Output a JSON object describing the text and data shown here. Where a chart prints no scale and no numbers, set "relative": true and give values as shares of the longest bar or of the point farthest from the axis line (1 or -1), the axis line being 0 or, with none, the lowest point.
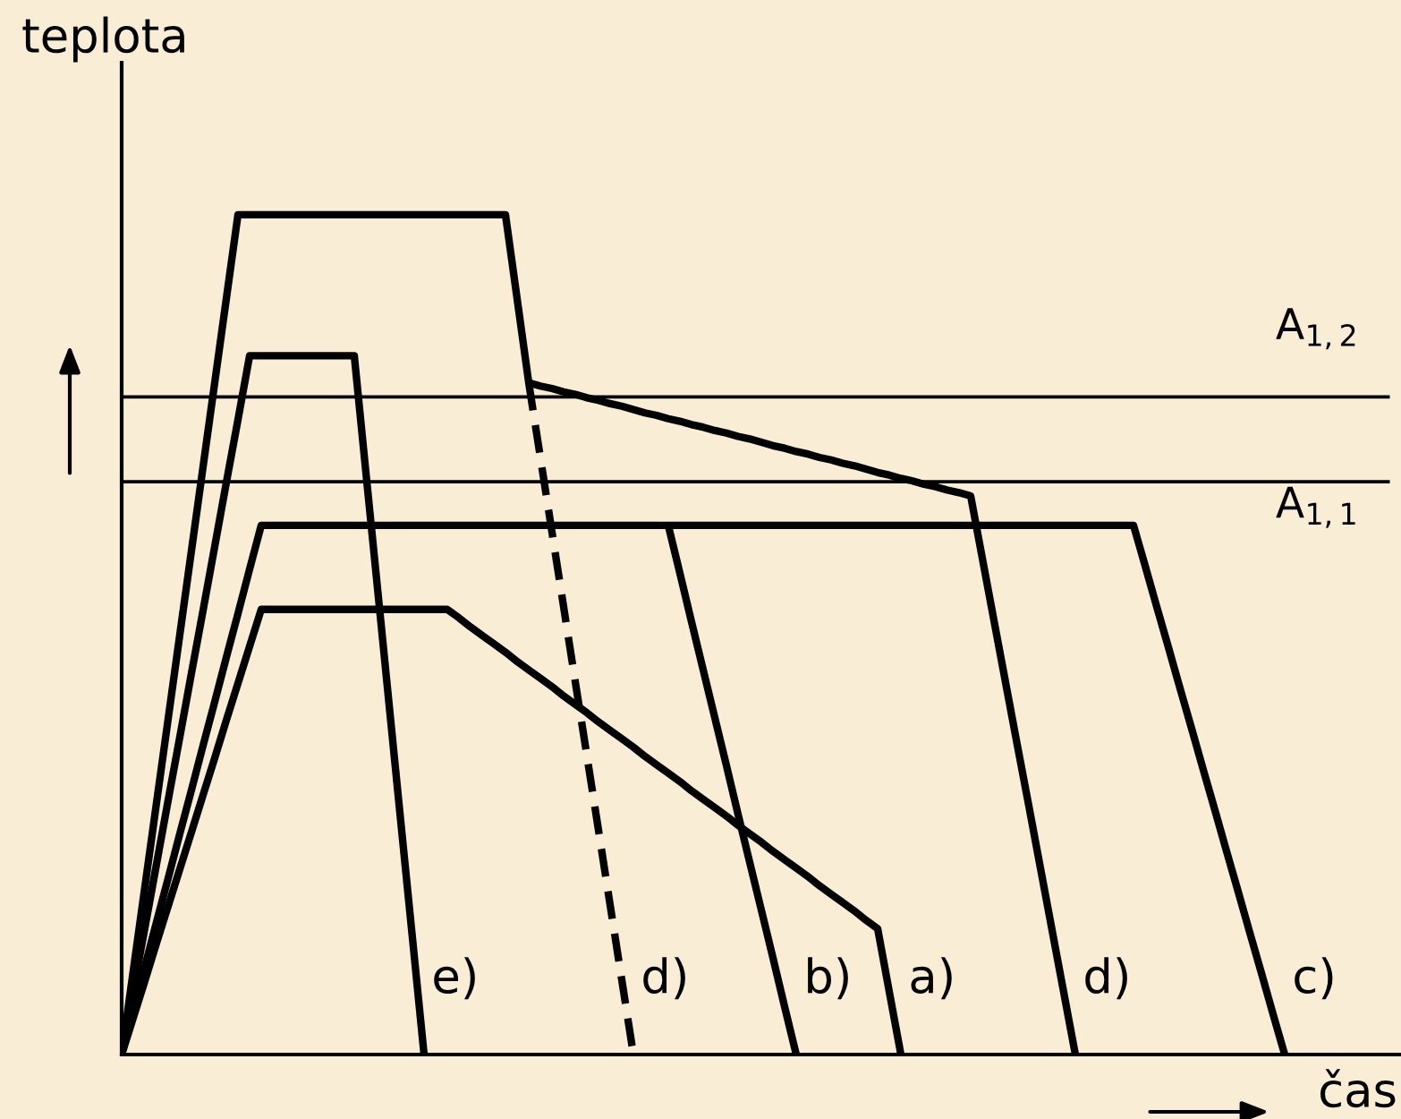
{
  "chart_data": {
    "type": "line",
    "relative": true,
    "xlabel": "čas",
    "ylabel": "teplota",
    "legend": false,
    "categories": [
      null,
      null,
      null,
      null,
      null,
      null,
      null,
      null,
      null,
      null,
      null,
      null,
      null,
      null,
      null,
      null,
      null,
      null,
      null,
      null,
      null,
      null,
      null,
      null,
      null,
      null,
      null,
      null,
      null,
      null,
      null,
      null,
      null,
      null,
      null,
      null,
      null,
      null,
      null,
      null,
      null,
      null,
      null,
      null,
      null,
      null,
      null,
      null,
      null,
      null,
      null,
      null,
      null,
      null,
      null,
      null,
      null,
      null,
      null,
      null,
      null,
      null,
      null,
      null,
      null,
      null,
      null,
      null,
      null,
      null,
      null,
      null,
      null,
      null,
      null,
      null,
      null,
      null,
      null,
      null,
      null,
      null,
      null,
      null,
      null,
      null,
      null,
      null,
      null,
      null,
      null,
      null,
      null,
      null,
      null,
      null,
      null,
      null,
      null,
      null,
      null
    ],
    "series": [
      {
        "name": "e)",
        "color": "#000000",
        "line_style": "solid",
        "values": [
          0,
          0.076,
          0.151,
          0.227,
          0.303,
          0.378,
          0.454,
          0.529,
          0.605,
          0.681,
          0.756,
          0.832,
          0.832,
          0.832,
          0.832,
          0.832,
          0.832,
          0.832,
          0.832,
          0.832,
          0.832,
          0.693,
          0.555,
          0.416,
          0.277,
          0.139,
          0,
          null,
          null,
          null,
          null,
          null,
          null,
          null,
          null,
          null,
          null,
          null,
          null,
          null,
          null,
          null,
          null,
          null,
          null,
          null,
          null,
          null,
          null,
          null,
          null,
          null,
          null,
          null,
          null,
          null,
          null,
          null,
          null,
          null,
          null,
          null,
          null,
          null,
          null,
          null,
          null,
          null,
          null,
          null,
          null,
          null,
          null,
          null,
          null,
          null,
          null,
          null,
          null,
          null,
          null,
          null,
          null,
          null,
          null,
          null,
          null,
          null,
          null,
          null,
          null,
          null,
          null,
          null,
          null,
          null,
          null,
          null,
          null,
          null,
          null
        ]
      },
      {
        "name": "d)",
        "color": "#000000",
        "line_style": "dashed",
        "values": [
          null,
          null,
          null,
          null,
          null,
          null,
          null,
          null,
          null,
          null,
          null,
          null,
          null,
          null,
          null,
          null,
          null,
          null,
          null,
          null,
          null,
          null,
          null,
          null,
          null,
          null,
          null,
          null,
          null,
          null,
          null,
          null,
          null,
          null,
          null,
          0.8,
          0.711,
          0.622,
          0.533,
          0.444,
          0.356,
          0.267,
          0.178,
          0.089,
          0,
          null,
          null,
          null,
          null,
          null,
          null,
          null,
          null,
          null,
          null,
          null,
          null,
          null,
          null,
          null,
          null,
          null,
          null,
          null,
          null,
          null,
          null,
          null,
          null,
          null,
          null,
          null,
          null,
          null,
          null,
          null,
          null,
          null,
          null,
          null,
          null,
          null,
          null,
          null,
          null,
          null,
          null,
          null,
          null,
          null,
          null,
          null,
          null,
          null,
          null,
          null,
          null,
          null,
          null,
          null,
          null
        ]
      },
      {
        "name": "b)",
        "color": "#000000",
        "line_style": "solid",
        "values": [
          0,
          0.053,
          0.105,
          0.158,
          0.21,
          0.263,
          0.315,
          0.368,
          0.42,
          0.473,
          0.525,
          0.578,
          0.63,
          0.63,
          0.63,
          0.63,
          0.63,
          0.63,
          0.63,
          0.63,
          0.63,
          0.63,
          0.63,
          0.63,
          0.63,
          0.63,
          0.63,
          0.63,
          0.63,
          0.63,
          0.63,
          0.63,
          0.63,
          0.63,
          0.63,
          0.63,
          0.63,
          0.63,
          0.63,
          0.63,
          0.63,
          0.63,
          0.63,
          0.63,
          0.63,
          0.63,
          0.63,
          0.63,
          0.573,
          0.515,
          0.458,
          0.401,
          0.344,
          0.286,
          0.229,
          0.172,
          0.115,
          0.057,
          0,
          null,
          null,
          null,
          null,
          null,
          null,
          null,
          null,
          null,
          null,
          null,
          null,
          null,
          null,
          null,
          null,
          null,
          null,
          null,
          null,
          null,
          null,
          null,
          null,
          null,
          null,
          null,
          null,
          null,
          null,
          null,
          null,
          null,
          null,
          null,
          null,
          null,
          null,
          null,
          null,
          null,
          null
        ]
      },
      {
        "name": "a)",
        "color": "#000000",
        "line_style": "solid",
        "values": [
          0,
          0.044,
          0.088,
          0.133,
          0.177,
          0.221,
          0.265,
          0.309,
          0.353,
          0.398,
          0.442,
          0.486,
          0.53,
          0.53,
          0.53,
          0.53,
          0.53,
          0.53,
          0.53,
          0.53,
          0.53,
          0.53,
          0.53,
          0.53,
          0.53,
          0.53,
          0.53,
          0.53,
          0.53,
          0.52,
          0.509,
          0.499,
          0.489,
          0.479,
          0.468,
          0.458,
          0.448,
          0.438,
          0.427,
          0.417,
          0.407,
          0.396,
          0.386,
          0.376,
          0.366,
          0.355,
          0.345,
          0.335,
          0.325,
          0.314,
          0.304,
          0.294,
          0.284,
          0.273,
          0.263,
          0.253,
          0.242,
          0.232,
          0.222,
          0.212,
          0.201,
          0.191,
          0.181,
          0.171,
          0.16,
          0.15,
          0.075,
          0,
          null,
          null,
          null,
          null,
          null,
          null,
          null,
          null,
          null,
          null,
          null,
          null,
          null,
          null,
          null,
          null,
          null,
          null,
          null,
          null,
          null,
          null,
          null,
          null,
          null,
          null,
          null,
          null,
          null,
          null,
          null,
          null,
          null
        ]
      },
      {
        "name": "d)",
        "color": "#000000",
        "line_style": "solid",
        "values": [
          0,
          0.1,
          0.2,
          0.3,
          0.4,
          0.5,
          0.6,
          0.7,
          0.8,
          0.9,
          1.0,
          1.0,
          1.0,
          1.0,
          1.0,
          1.0,
          1.0,
          1.0,
          1.0,
          1.0,
          1.0,
          1.0,
          1.0,
          1.0,
          1.0,
          1.0,
          1.0,
          1.0,
          1.0,
          1.0,
          1.0,
          1.0,
          1.0,
          1.0,
          0.9,
          0.8,
          0.796,
          0.793,
          0.789,
          0.786,
          0.782,
          0.779,
          0.775,
          0.772,
          0.768,
          0.764,
          0.761,
          0.757,
          0.754,
          0.75,
          0.747,
          0.743,
          0.74,
          0.736,
          0.733,
          0.729,
          0.725,
          0.722,
          0.718,
          0.715,
          0.711,
          0.708,
          0.704,
          0.701,
          0.697,
          0.693,
          0.69,
          0.686,
          0.683,
          0.679,
          0.676,
          0.672,
          0.669,
          0.665,
          0.591,
          0.517,
          0.443,
          0.369,
          0.296,
          0.222,
          0.148,
          0.074,
          0,
          null,
          null,
          null,
          null,
          null,
          null,
          null,
          null,
          null,
          null,
          null,
          null,
          null,
          null,
          null,
          null,
          null,
          null
        ]
      },
      {
        "name": "c)",
        "color": "#000000",
        "line_style": "solid",
        "values": [
          null,
          null,
          null,
          null,
          null,
          null,
          null,
          null,
          null,
          null,
          null,
          null,
          null,
          null,
          null,
          null,
          null,
          null,
          null,
          null,
          null,
          null,
          null,
          null,
          null,
          null,
          null,
          null,
          null,
          null,
          null,
          null,
          null,
          null,
          null,
          null,
          null,
          null,
          null,
          null,
          null,
          null,
          null,
          null,
          null,
          null,
          null,
          0.63,
          0.63,
          0.63,
          0.63,
          0.63,
          0.63,
          0.63,
          0.63,
          0.63,
          0.63,
          0.63,
          0.63,
          0.63,
          0.63,
          0.63,
          0.63,
          0.63,
          0.63,
          0.63,
          0.63,
          0.63,
          0.63,
          0.63,
          0.63,
          0.63,
          0.63,
          0.63,
          0.63,
          0.63,
          0.63,
          0.63,
          0.63,
          0.63,
          0.63,
          0.63,
          0.63,
          0.63,
          0.63,
          0.63,
          0.63,
          0.63,
          0.582,
          0.533,
          0.485,
          0.436,
          0.388,
          0.339,
          0.291,
          0.242,
          0.194,
          0.145,
          0.097,
          0.048,
          0
        ]
      }
    ],
    "ref_lines": [
      {
        "axis": "y",
        "value": 0.783,
        "label": "A$_{1,2}$",
        "color": "#000000"
      },
      {
        "axis": "y",
        "value": 0.682,
        "label": "A$_{1,1}$",
        "color": "#000000"
      }
    ]
  }
}
